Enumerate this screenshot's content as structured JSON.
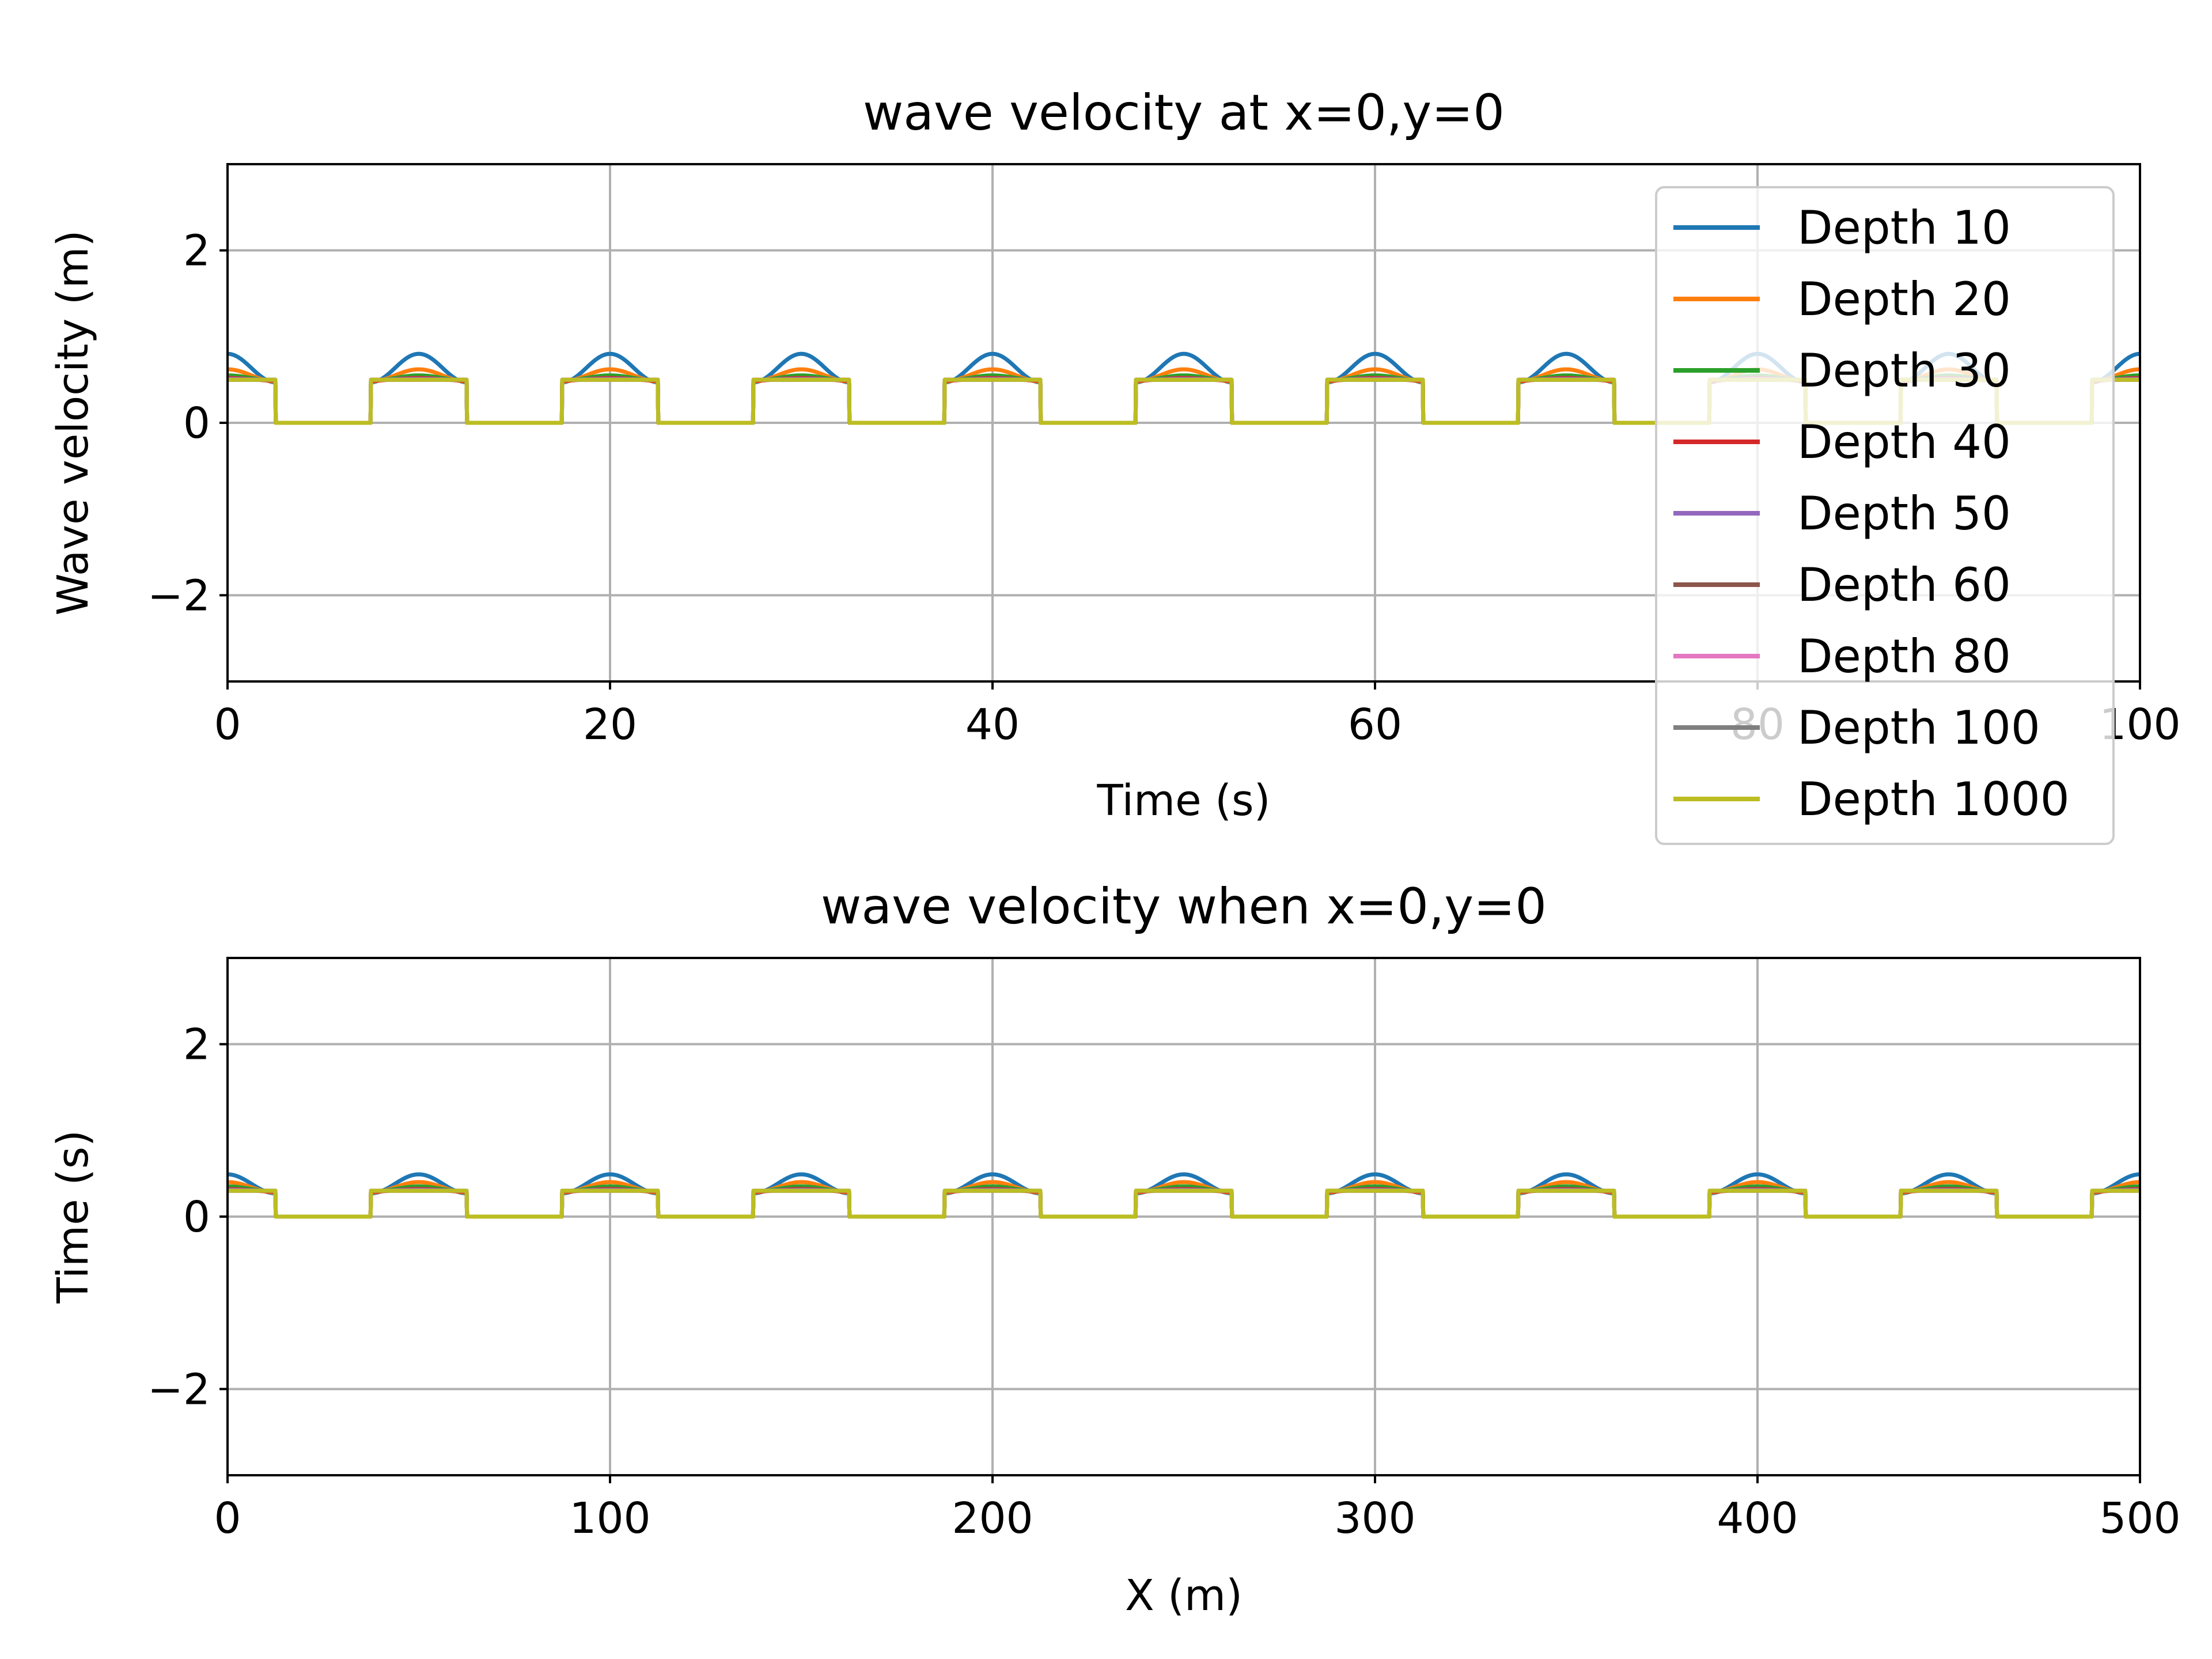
{
  "chart_data": [
    {
      "type": "line",
      "title": "wave velocity at x=0,y=0",
      "xlabel": "Time (s)",
      "ylabel": "Wave velocity (m)",
      "xlim": [
        0,
        100
      ],
      "ylim": [
        -3,
        3
      ],
      "xticks": [
        0,
        20,
        40,
        60,
        80,
        100
      ],
      "yticks": [
        -2,
        0,
        2
      ],
      "grid": true,
      "legend": "upper-right",
      "period": 10,
      "on_window": [
        -2.5,
        2.5
      ],
      "series": [
        {
          "name": "Depth 10",
          "color": "#1f77b4",
          "peak": 0.8,
          "floor": 0.47
        },
        {
          "name": "Depth 20",
          "color": "#ff7f0e",
          "peak": 0.62,
          "floor": 0.48
        },
        {
          "name": "Depth 30",
          "color": "#2ca02c",
          "peak": 0.55,
          "floor": 0.49
        },
        {
          "name": "Depth 40",
          "color": "#d62728",
          "peak": 0.52,
          "floor": 0.49
        },
        {
          "name": "Depth 50",
          "color": "#9467bd",
          "peak": 0.51,
          "floor": 0.5
        },
        {
          "name": "Depth 60",
          "color": "#8c564b",
          "peak": 0.5,
          "floor": 0.5
        },
        {
          "name": "Depth 80",
          "color": "#e377c2",
          "peak": 0.5,
          "floor": 0.5
        },
        {
          "name": "Depth 100",
          "color": "#7f7f7f",
          "peak": 0.5,
          "floor": 0.5
        },
        {
          "name": "Depth 1000",
          "color": "#bcbd22",
          "peak": 0.5,
          "floor": 0.5
        }
      ]
    },
    {
      "type": "line",
      "title": "wave velocity when x=0,y=0",
      "xlabel": "X (m)",
      "ylabel": "Time (s)",
      "xlim": [
        0,
        500
      ],
      "ylim": [
        -3,
        3
      ],
      "xticks": [
        0,
        100,
        200,
        300,
        400,
        500
      ],
      "yticks": [
        -2,
        0,
        2
      ],
      "grid": true,
      "period": 50,
      "on_window": [
        -12.5,
        12.5
      ],
      "series": [
        {
          "name": "Depth 10",
          "color": "#1f77b4",
          "peak": 0.49,
          "floor": 0.27
        },
        {
          "name": "Depth 20",
          "color": "#ff7f0e",
          "peak": 0.4,
          "floor": 0.28
        },
        {
          "name": "Depth 30",
          "color": "#2ca02c",
          "peak": 0.35,
          "floor": 0.29
        },
        {
          "name": "Depth 40",
          "color": "#d62728",
          "peak": 0.32,
          "floor": 0.29
        },
        {
          "name": "Depth 50",
          "color": "#9467bd",
          "peak": 0.31,
          "floor": 0.3
        },
        {
          "name": "Depth 60",
          "color": "#8c564b",
          "peak": 0.3,
          "floor": 0.3
        },
        {
          "name": "Depth 80",
          "color": "#e377c2",
          "peak": 0.3,
          "floor": 0.3
        },
        {
          "name": "Depth 100",
          "color": "#7f7f7f",
          "peak": 0.3,
          "floor": 0.3
        },
        {
          "name": "Depth 1000",
          "color": "#bcbd22",
          "peak": 0.3,
          "floor": 0.3
        }
      ]
    }
  ]
}
